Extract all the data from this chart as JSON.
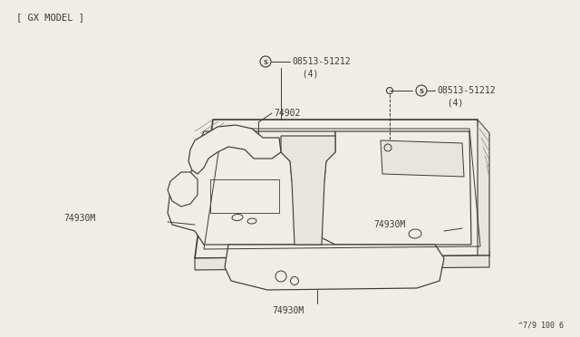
{
  "title": "[ GX MODEL ]",
  "footer": "^7/9 100 6",
  "background_color": "#f0ede6",
  "line_color": "#3a3a3a",
  "text_color": "#3a3a3a",
  "labels": {
    "part_08513_left": "08513-51212\n  (4)",
    "part_08513_right": "08513-51212\n  (4)",
    "part_74902": "74902",
    "part_74930M_left": "74930M",
    "part_74930M_right": "74930M",
    "part_74930M_bottom": "74930M"
  },
  "figsize": [
    6.4,
    3.72
  ],
  "dpi": 100
}
